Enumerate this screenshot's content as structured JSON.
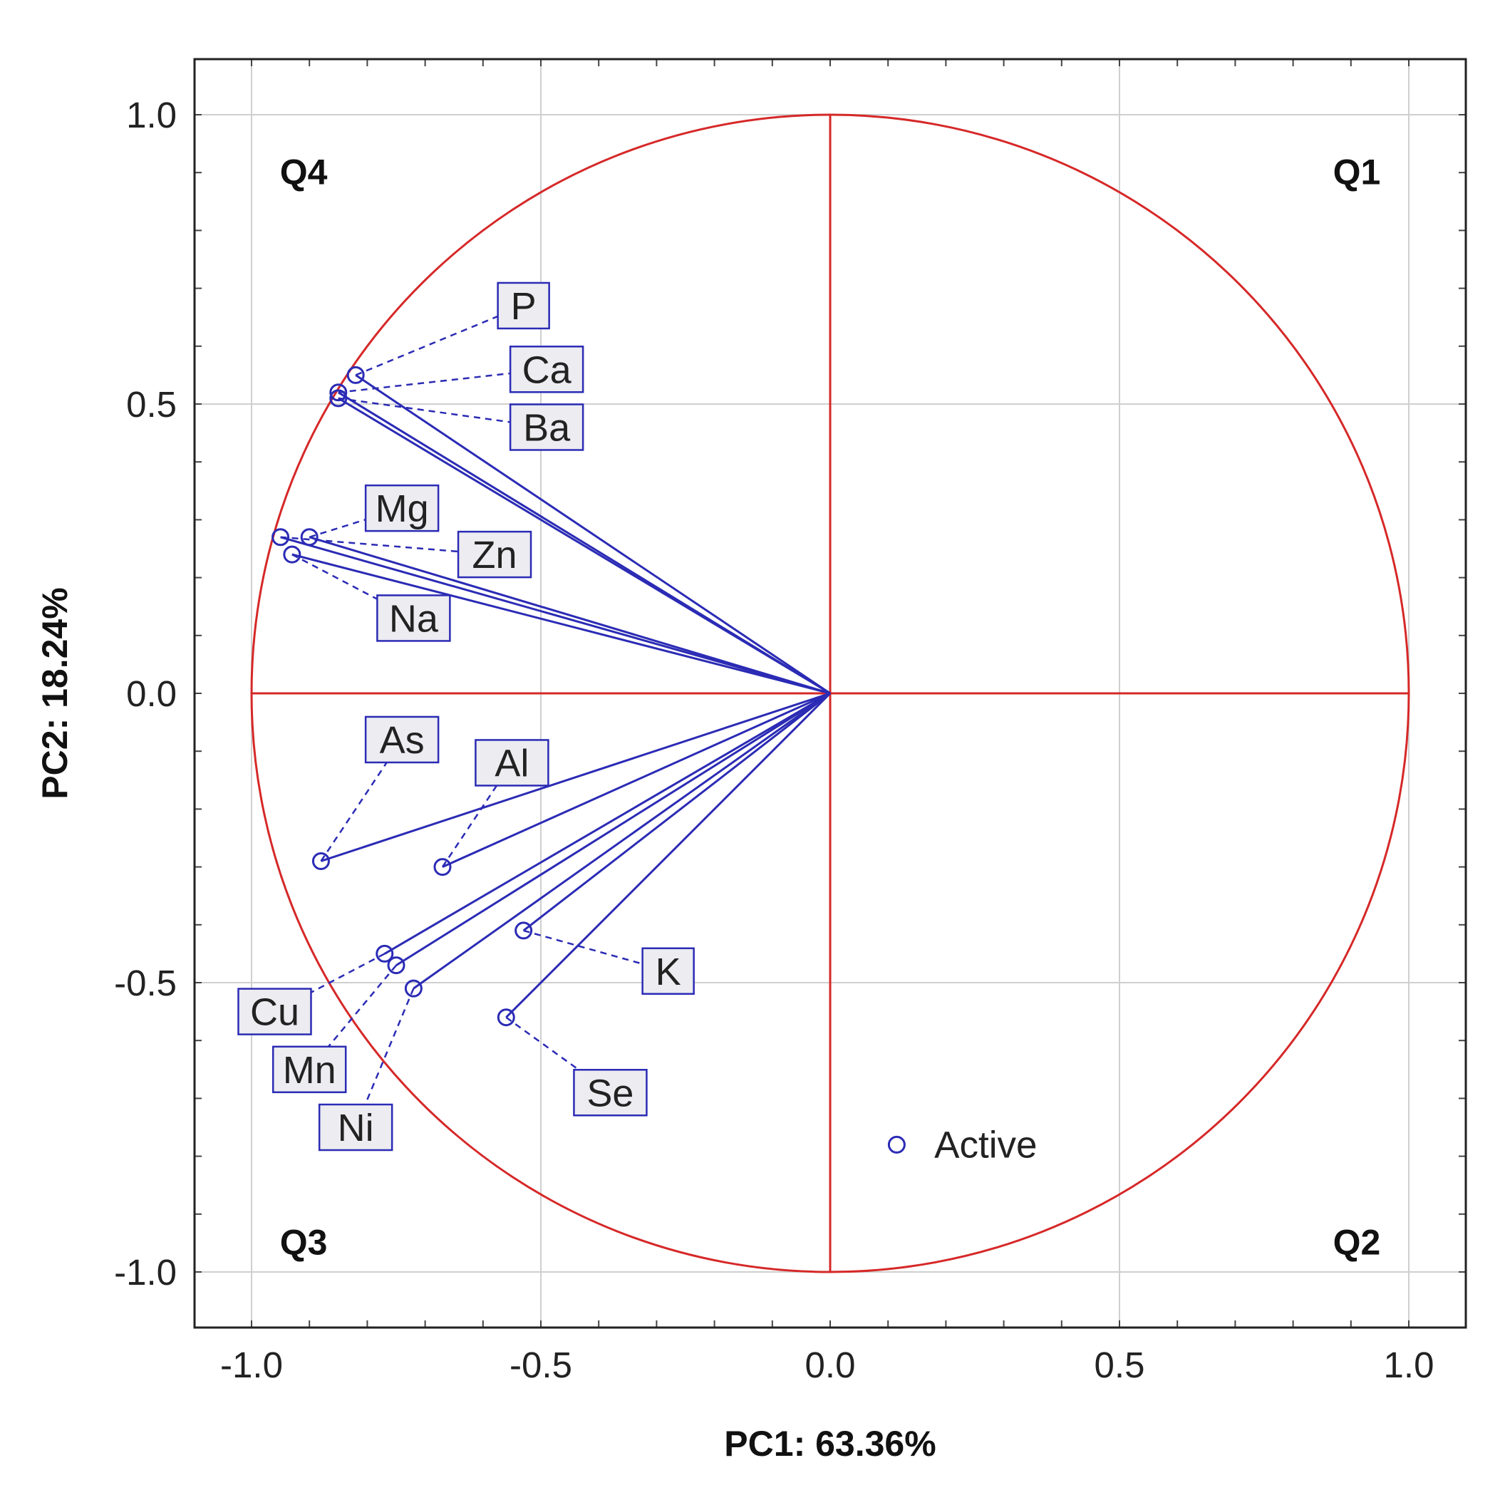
{
  "chart_data": {
    "type": "scatter",
    "subtype": "pca-loading-circle",
    "title": "",
    "xlabel": "PC1: 63.36%",
    "ylabel": "PC2: 18.24%",
    "xlim": [
      -1.1,
      1.1
    ],
    "ylim": [
      -1.1,
      1.1
    ],
    "xticks": [
      -1.0,
      -0.5,
      0.0,
      0.5,
      1.0
    ],
    "yticks": [
      -1.0,
      -0.5,
      0.0,
      0.5,
      1.0
    ],
    "xtick_labels": [
      "-1.0",
      "-0.5",
      "0.0",
      "0.5",
      "1.0"
    ],
    "ytick_labels": [
      "-1.0",
      "-0.5",
      "0.0",
      "0.5",
      "1.0"
    ],
    "grid": true,
    "unit_circle": true,
    "quadrants": [
      {
        "label": "Q1",
        "position": "top-right"
      },
      {
        "label": "Q2",
        "position": "bottom-right"
      },
      {
        "label": "Q3",
        "position": "bottom-left"
      },
      {
        "label": "Q4",
        "position": "top-left"
      }
    ],
    "legend": {
      "label": "Active",
      "position": "bottom-right"
    },
    "colors": {
      "vectors": "#2b2bb5",
      "circle": "#d62828",
      "grid": "#cfcfcf",
      "label_fill": "#ececf1"
    },
    "variables": [
      {
        "name": "P",
        "x": -0.82,
        "y": 0.55,
        "label_x": -0.53,
        "label_y": 0.67
      },
      {
        "name": "Ca",
        "x": -0.85,
        "y": 0.52,
        "label_x": -0.49,
        "label_y": 0.56
      },
      {
        "name": "Ba",
        "x": -0.85,
        "y": 0.51,
        "label_x": -0.49,
        "label_y": 0.46
      },
      {
        "name": "Mg",
        "x": -0.9,
        "y": 0.27,
        "label_x": -0.74,
        "label_y": 0.32
      },
      {
        "name": "Zn",
        "x": -0.95,
        "y": 0.27,
        "label_x": -0.58,
        "label_y": 0.24
      },
      {
        "name": "Na",
        "x": -0.93,
        "y": 0.24,
        "label_x": -0.72,
        "label_y": 0.13
      },
      {
        "name": "As",
        "x": -0.88,
        "y": -0.29,
        "label_x": -0.74,
        "label_y": -0.08
      },
      {
        "name": "Al",
        "x": -0.67,
        "y": -0.3,
        "label_x": -0.55,
        "label_y": -0.12
      },
      {
        "name": "K",
        "x": -0.53,
        "y": -0.41,
        "label_x": -0.28,
        "label_y": -0.48
      },
      {
        "name": "Cu",
        "x": -0.77,
        "y": -0.45,
        "label_x": -0.96,
        "label_y": -0.55
      },
      {
        "name": "Mn",
        "x": -0.75,
        "y": -0.47,
        "label_x": -0.9,
        "label_y": -0.65
      },
      {
        "name": "Ni",
        "x": -0.72,
        "y": -0.51,
        "label_x": -0.82,
        "label_y": -0.75
      },
      {
        "name": "Se",
        "x": -0.56,
        "y": -0.56,
        "label_x": -0.38,
        "label_y": -0.69
      }
    ]
  }
}
